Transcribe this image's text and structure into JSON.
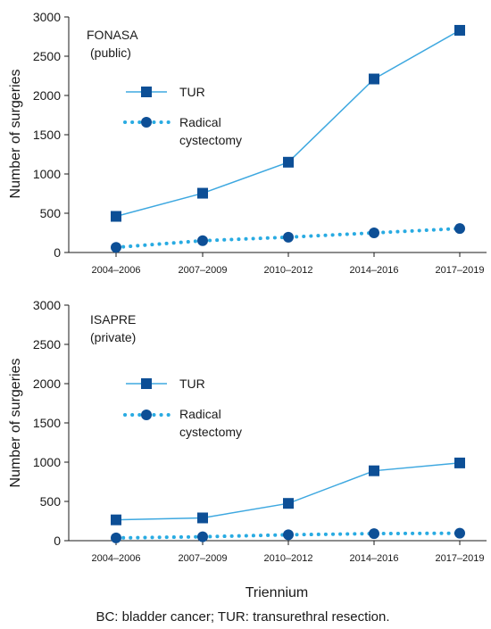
{
  "chart_data": [
    {
      "type": "line",
      "title": "",
      "annotation": [
        "FONASA",
        "(public)"
      ],
      "ylabel": "Number of surgeries",
      "xlabel": "",
      "categories": [
        "2004–2006",
        "2007–2009",
        "2010–2012",
        "2014–2016",
        "2017–2019"
      ],
      "ylim": [
        0,
        3000
      ],
      "yticks": [
        0,
        500,
        1000,
        1500,
        2000,
        2500,
        3000
      ],
      "legend_position": "top-left",
      "series": [
        {
          "name": "TUR",
          "values": [
            460,
            755,
            1150,
            2210,
            2830
          ]
        },
        {
          "name": "Radical cystectomy",
          "values": [
            65,
            150,
            195,
            250,
            305
          ]
        }
      ]
    },
    {
      "type": "line",
      "title": "",
      "annotation": [
        "ISAPRE",
        "(private)"
      ],
      "ylabel": "Number of surgeries",
      "xlabel": "Triennium",
      "categories": [
        "2004–2006",
        "2007–2009",
        "2010–2012",
        "2014–2016",
        "2017–2019"
      ],
      "ylim": [
        0,
        3000
      ],
      "yticks": [
        0,
        500,
        1000,
        1500,
        2000,
        2500,
        3000
      ],
      "legend_position": "top-left",
      "series": [
        {
          "name": "TUR",
          "values": [
            265,
            290,
            475,
            890,
            990
          ]
        },
        {
          "name": "Radical cystectomy",
          "values": [
            35,
            50,
            75,
            90,
            95
          ]
        }
      ]
    }
  ],
  "legend": {
    "tur_label": "TUR",
    "rc_label_line1": "Radical",
    "rc_label_line2": "cystectomy"
  },
  "footer": "BC: bladder cancer; TUR: transurethral resection.",
  "colors": {
    "tur_line": "#3ea8e0",
    "rc_line": "#29abe2",
    "marker": "#0d4f96",
    "axis": "#1a1a1a"
  }
}
